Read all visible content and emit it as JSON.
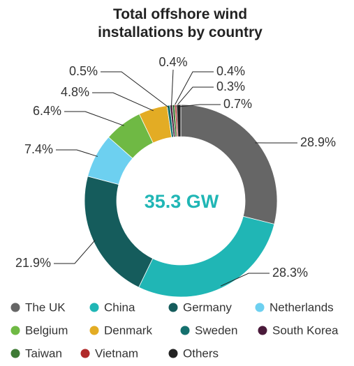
{
  "chart_data": {
    "type": "donut",
    "title": "Total offshore wind installations by country",
    "center_label": "35.3 GW",
    "categories": [
      "The UK",
      "China",
      "Germany",
      "Netherlands",
      "Belgium",
      "Denmark",
      "Sweden",
      "South Korea",
      "Taiwan",
      "Vietnam",
      "Others"
    ],
    "values": [
      28.9,
      28.3,
      21.9,
      7.4,
      6.4,
      4.8,
      0.5,
      0.4,
      0.4,
      0.3,
      0.7
    ],
    "value_labels": [
      "28.9%",
      "28.3%",
      "21.9%",
      "7.4%",
      "6.4%",
      "4.8%",
      "0.5%",
      "0.4%",
      "0.4%",
      "0.3%",
      "0.7%"
    ],
    "colors": [
      "#666666",
      "#20b6b5",
      "#155c5c",
      "#6dd0f0",
      "#6fb944",
      "#e3ac24",
      "#14706e",
      "#4a1a3a",
      "#3e7b35",
      "#b02a2a",
      "#222222"
    ]
  }
}
